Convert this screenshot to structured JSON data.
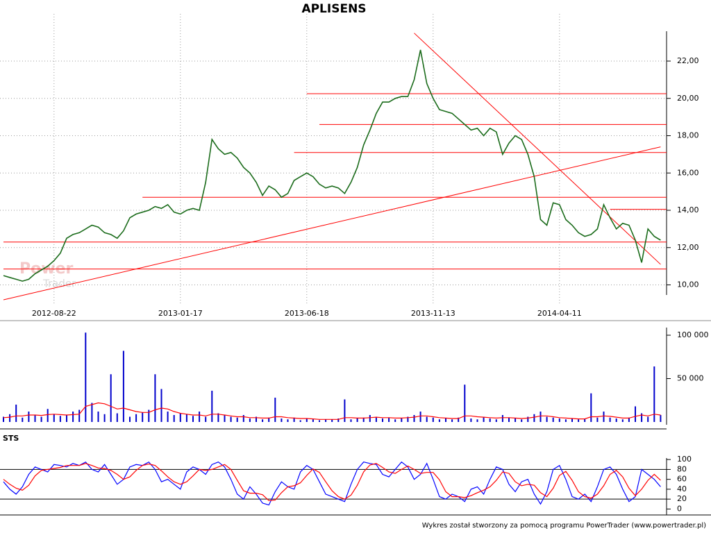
{
  "watermark": [
    "Power",
    "Trader"
  ],
  "footer": "Wykres został stworzony za pomocą programu PowerTrader (www.powertrader.pl)",
  "chart_data": [
    {
      "type": "line",
      "title": "APLISENS",
      "color": "#1a6b1a",
      "grid": true,
      "categories": [
        null,
        null,
        null,
        null,
        null,
        null,
        null,
        null,
        "2012-08-22",
        null,
        null,
        null,
        null,
        null,
        null,
        null,
        null,
        null,
        null,
        null,
        null,
        null,
        null,
        null,
        null,
        null,
        null,
        null,
        "2013-01-17",
        null,
        null,
        null,
        null,
        null,
        null,
        null,
        null,
        null,
        null,
        null,
        null,
        null,
        null,
        null,
        null,
        null,
        null,
        null,
        "2013-06-18",
        null,
        null,
        null,
        null,
        null,
        null,
        null,
        null,
        null,
        null,
        null,
        null,
        null,
        null,
        null,
        null,
        null,
        null,
        null,
        "2013-11-13",
        null,
        null,
        null,
        null,
        null,
        null,
        null,
        null,
        null,
        null,
        null,
        null,
        null,
        null,
        null,
        null,
        null,
        null,
        null,
        "2014-04-11",
        null,
        null,
        null,
        null,
        null,
        null,
        null,
        null,
        null,
        null,
        null,
        null,
        null,
        null,
        null,
        null
      ],
      "values": [
        10.5,
        10.4,
        10.3,
        10.2,
        10.3,
        10.6,
        10.8,
        11.0,
        11.3,
        11.7,
        12.5,
        12.7,
        12.8,
        13.0,
        13.2,
        13.1,
        12.8,
        12.7,
        12.5,
        12.9,
        13.6,
        13.8,
        13.9,
        14.0,
        14.2,
        14.1,
        14.3,
        13.9,
        13.8,
        14.0,
        14.1,
        14.0,
        15.5,
        17.8,
        17.3,
        17.0,
        17.1,
        16.8,
        16.3,
        16.0,
        15.5,
        14.8,
        15.3,
        15.1,
        14.7,
        14.9,
        15.6,
        15.8,
        16.0,
        15.8,
        15.4,
        15.2,
        15.3,
        15.2,
        14.9,
        15.5,
        16.3,
        17.5,
        18.3,
        19.2,
        19.8,
        19.8,
        20.0,
        20.1,
        20.1,
        21.0,
        22.6,
        20.8,
        20.0,
        19.4,
        19.3,
        19.2,
        18.9,
        18.6,
        18.3,
        18.4,
        18.0,
        18.4,
        18.2,
        17.0,
        17.6,
        18.0,
        17.8,
        17.0,
        15.8,
        13.5,
        13.2,
        14.4,
        14.3,
        13.5,
        13.2,
        12.8,
        12.6,
        12.7,
        13.0,
        14.3,
        13.6,
        13.0,
        13.3,
        13.2,
        12.4,
        11.2,
        13.0,
        12.6,
        12.4
      ],
      "ylim": [
        9.2,
        23.6
      ],
      "yticks": [
        {
          "value": 10,
          "label": "10,00"
        },
        {
          "value": 12,
          "label": "12,00"
        },
        {
          "value": 14,
          "label": "14,00"
        },
        {
          "value": 16,
          "label": "16,00"
        },
        {
          "value": 18,
          "label": "18,00"
        },
        {
          "value": 20,
          "label": "20,00"
        },
        {
          "value": 22,
          "label": "22,00"
        }
      ],
      "line_color": "#ff0000",
      "levels": [
        {
          "value": 20.25,
          "from": 48
        },
        {
          "value": 18.6,
          "from": 50
        },
        {
          "value": 17.1,
          "from": 46
        },
        {
          "value": 14.7,
          "from": 22
        },
        {
          "value": 14.05,
          "from": 96
        },
        {
          "value": 12.3,
          "from": 0
        },
        {
          "value": 10.85,
          "from": 0
        }
      ],
      "trendlines": [
        {
          "x": [
            0,
            104
          ],
          "values": [
            9.2,
            17.4
          ]
        },
        {
          "x": [
            65,
            104
          ],
          "values": [
            23.5,
            11.1
          ]
        }
      ]
    },
    {
      "type": "bar",
      "color": "#0000cc",
      "values": [
        6000,
        9000,
        20000,
        5000,
        12000,
        8000,
        6000,
        15000,
        9000,
        7000,
        8000,
        12000,
        14000,
        103000,
        22000,
        12000,
        9000,
        55000,
        10000,
        82000,
        6000,
        9000,
        11000,
        14000,
        55000,
        38000,
        12000,
        8000,
        10000,
        9000,
        7000,
        12000,
        6000,
        36000,
        10000,
        8000,
        6000,
        5000,
        8000,
        4000,
        6000,
        3000,
        5000,
        28000,
        4000,
        3000,
        5000,
        2000,
        4000,
        3000,
        2000,
        3000,
        3000,
        4000,
        26000,
        3000,
        4000,
        5000,
        8000,
        6000,
        4000,
        5000,
        3000,
        4000,
        6000,
        8000,
        12000,
        6000,
        5000,
        3000,
        4000,
        3000,
        5000,
        43000,
        4000,
        3000,
        6000,
        4000,
        3000,
        8000,
        5000,
        4000,
        3000,
        6000,
        9000,
        12000,
        6000,
        5000,
        4000,
        3000,
        4000,
        3000,
        4000,
        33000,
        5000,
        12000,
        5000,
        4000,
        3000,
        5000,
        18000,
        10000,
        6000,
        64000,
        8000
      ],
      "average": {
        "color": "#ff0000",
        "values": [
          5000,
          5500,
          7000,
          7000,
          8000,
          8000,
          7500,
          8500,
          9000,
          8500,
          8000,
          8500,
          9000,
          18000,
          20000,
          22000,
          21000,
          18000,
          15000,
          16000,
          14000,
          12000,
          11000,
          11000,
          14000,
          16000,
          15000,
          12000,
          10000,
          9000,
          8000,
          8000,
          7000,
          9000,
          9000,
          8000,
          7000,
          6000,
          6000,
          5000,
          5000,
          4500,
          4500,
          6000,
          6000,
          5000,
          4500,
          4000,
          4000,
          3500,
          3000,
          3000,
          3000,
          3000,
          5000,
          5000,
          4500,
          4500,
          5000,
          5500,
          5000,
          5000,
          4500,
          4500,
          5000,
          5500,
          7000,
          7000,
          6000,
          5000,
          4500,
          4000,
          4000,
          7000,
          7000,
          6000,
          5500,
          5000,
          4500,
          5000,
          5000,
          4500,
          4000,
          4500,
          5500,
          7000,
          7000,
          6000,
          5000,
          4500,
          4000,
          3500,
          3500,
          6000,
          6000,
          7000,
          6500,
          5500,
          4500,
          4500,
          6500,
          8000,
          7000,
          9000,
          8000
        ]
      },
      "ylim": [
        0,
        108800
      ],
      "yticks": [
        {
          "value": 50000,
          "label": "50 000"
        },
        {
          "value": 100000,
          "label": "100 000"
        }
      ]
    },
    {
      "type": "line",
      "title": "STS",
      "series": [
        {
          "color": "#0000ff",
          "values": [
            55,
            40,
            30,
            45,
            70,
            85,
            80,
            75,
            90,
            88,
            85,
            92,
            88,
            95,
            80,
            75,
            90,
            70,
            50,
            60,
            85,
            90,
            88,
            95,
            80,
            55,
            60,
            50,
            40,
            75,
            85,
            80,
            70,
            90,
            95,
            85,
            60,
            30,
            20,
            45,
            30,
            12,
            8,
            35,
            55,
            45,
            40,
            75,
            88,
            80,
            55,
            30,
            25,
            20,
            15,
            50,
            80,
            95,
            92,
            90,
            70,
            65,
            80,
            95,
            85,
            60,
            70,
            92,
            60,
            25,
            20,
            30,
            25,
            15,
            40,
            45,
            30,
            60,
            85,
            80,
            50,
            35,
            55,
            60,
            30,
            10,
            35,
            80,
            88,
            60,
            25,
            20,
            30,
            15,
            45,
            80,
            85,
            70,
            40,
            15,
            25,
            80,
            70,
            60,
            45
          ]
        },
        {
          "color": "#ff0000",
          "values": [
            60,
            50,
            42,
            38,
            48,
            67,
            78,
            80,
            82,
            84,
            88,
            88,
            88,
            92,
            88,
            83,
            82,
            78,
            70,
            60,
            65,
            78,
            88,
            91,
            88,
            77,
            65,
            55,
            50,
            55,
            67,
            80,
            78,
            80,
            85,
            90,
            80,
            58,
            37,
            32,
            32,
            29,
            17,
            18,
            33,
            45,
            47,
            53,
            68,
            81,
            74,
            55,
            37,
            25,
            20,
            28,
            48,
            75,
            89,
            92,
            84,
            75,
            72,
            80,
            87,
            80,
            72,
            74,
            74,
            59,
            35,
            25,
            25,
            23,
            27,
            33,
            38,
            45,
            58,
            75,
            72,
            55,
            47,
            50,
            48,
            33,
            25,
            42,
            68,
            76,
            58,
            35,
            25,
            22,
            30,
            47,
            70,
            78,
            65,
            42,
            27,
            40,
            58,
            70,
            58
          ]
        }
      ],
      "levels": [
        20,
        80
      ],
      "ylim": [
        -12,
        110
      ],
      "yticks": [
        0,
        20,
        40,
        60,
        80,
        100
      ]
    }
  ]
}
